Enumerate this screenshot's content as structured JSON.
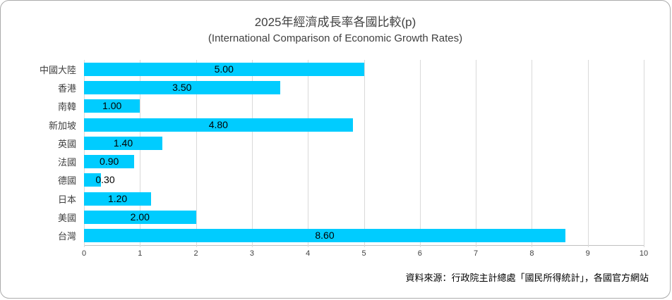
{
  "title": "2025年經濟成長率各國比較(p)",
  "subtitle": "(International Comparison of Economic Growth Rates)",
  "source_note": "資料來源：行政院主計總處「國民所得統計」，各國官方網站",
  "colors": {
    "bar": "#00CCFF",
    "gridline": "#D9D9D9",
    "axis_line": "#BFBFBF",
    "text": "#404040",
    "value_label": "#000000",
    "frame_border": "#ABABAB",
    "background": "#FFFFFF"
  },
  "chart_data": {
    "type": "bar",
    "orientation": "horizontal",
    "title": "2025年經濟成長率各國比較(p)",
    "subtitle": "(International Comparison of Economic Growth Rates)",
    "categories": [
      "中國大陸",
      "香港",
      "南韓",
      "新加坡",
      "英國",
      "法國",
      "德國",
      "日本",
      "美國",
      "台灣"
    ],
    "values": [
      5.0,
      3.5,
      1.0,
      4.8,
      1.4,
      0.9,
      0.3,
      1.2,
      2.0,
      8.6
    ],
    "value_labels": [
      "5.00",
      "3.50",
      "1.00",
      "4.80",
      "1.40",
      "0.90",
      "0.30",
      "1.20",
      "2.00",
      "8.60"
    ],
    "xlim": [
      0,
      10
    ],
    "x_ticks": [
      0,
      1,
      2,
      3,
      4,
      5,
      6,
      7,
      8,
      9,
      10
    ],
    "x_tick_labels": [
      "0",
      "1",
      "2",
      "3",
      "4",
      "5",
      "6",
      "7",
      "8",
      "9",
      "10"
    ],
    "grid": true,
    "legend": false,
    "bar_color": "#00CCFF",
    "data_label_position": "center",
    "source": "資料來源：行政院主計總處「國民所得統計」，各國官方網站"
  }
}
